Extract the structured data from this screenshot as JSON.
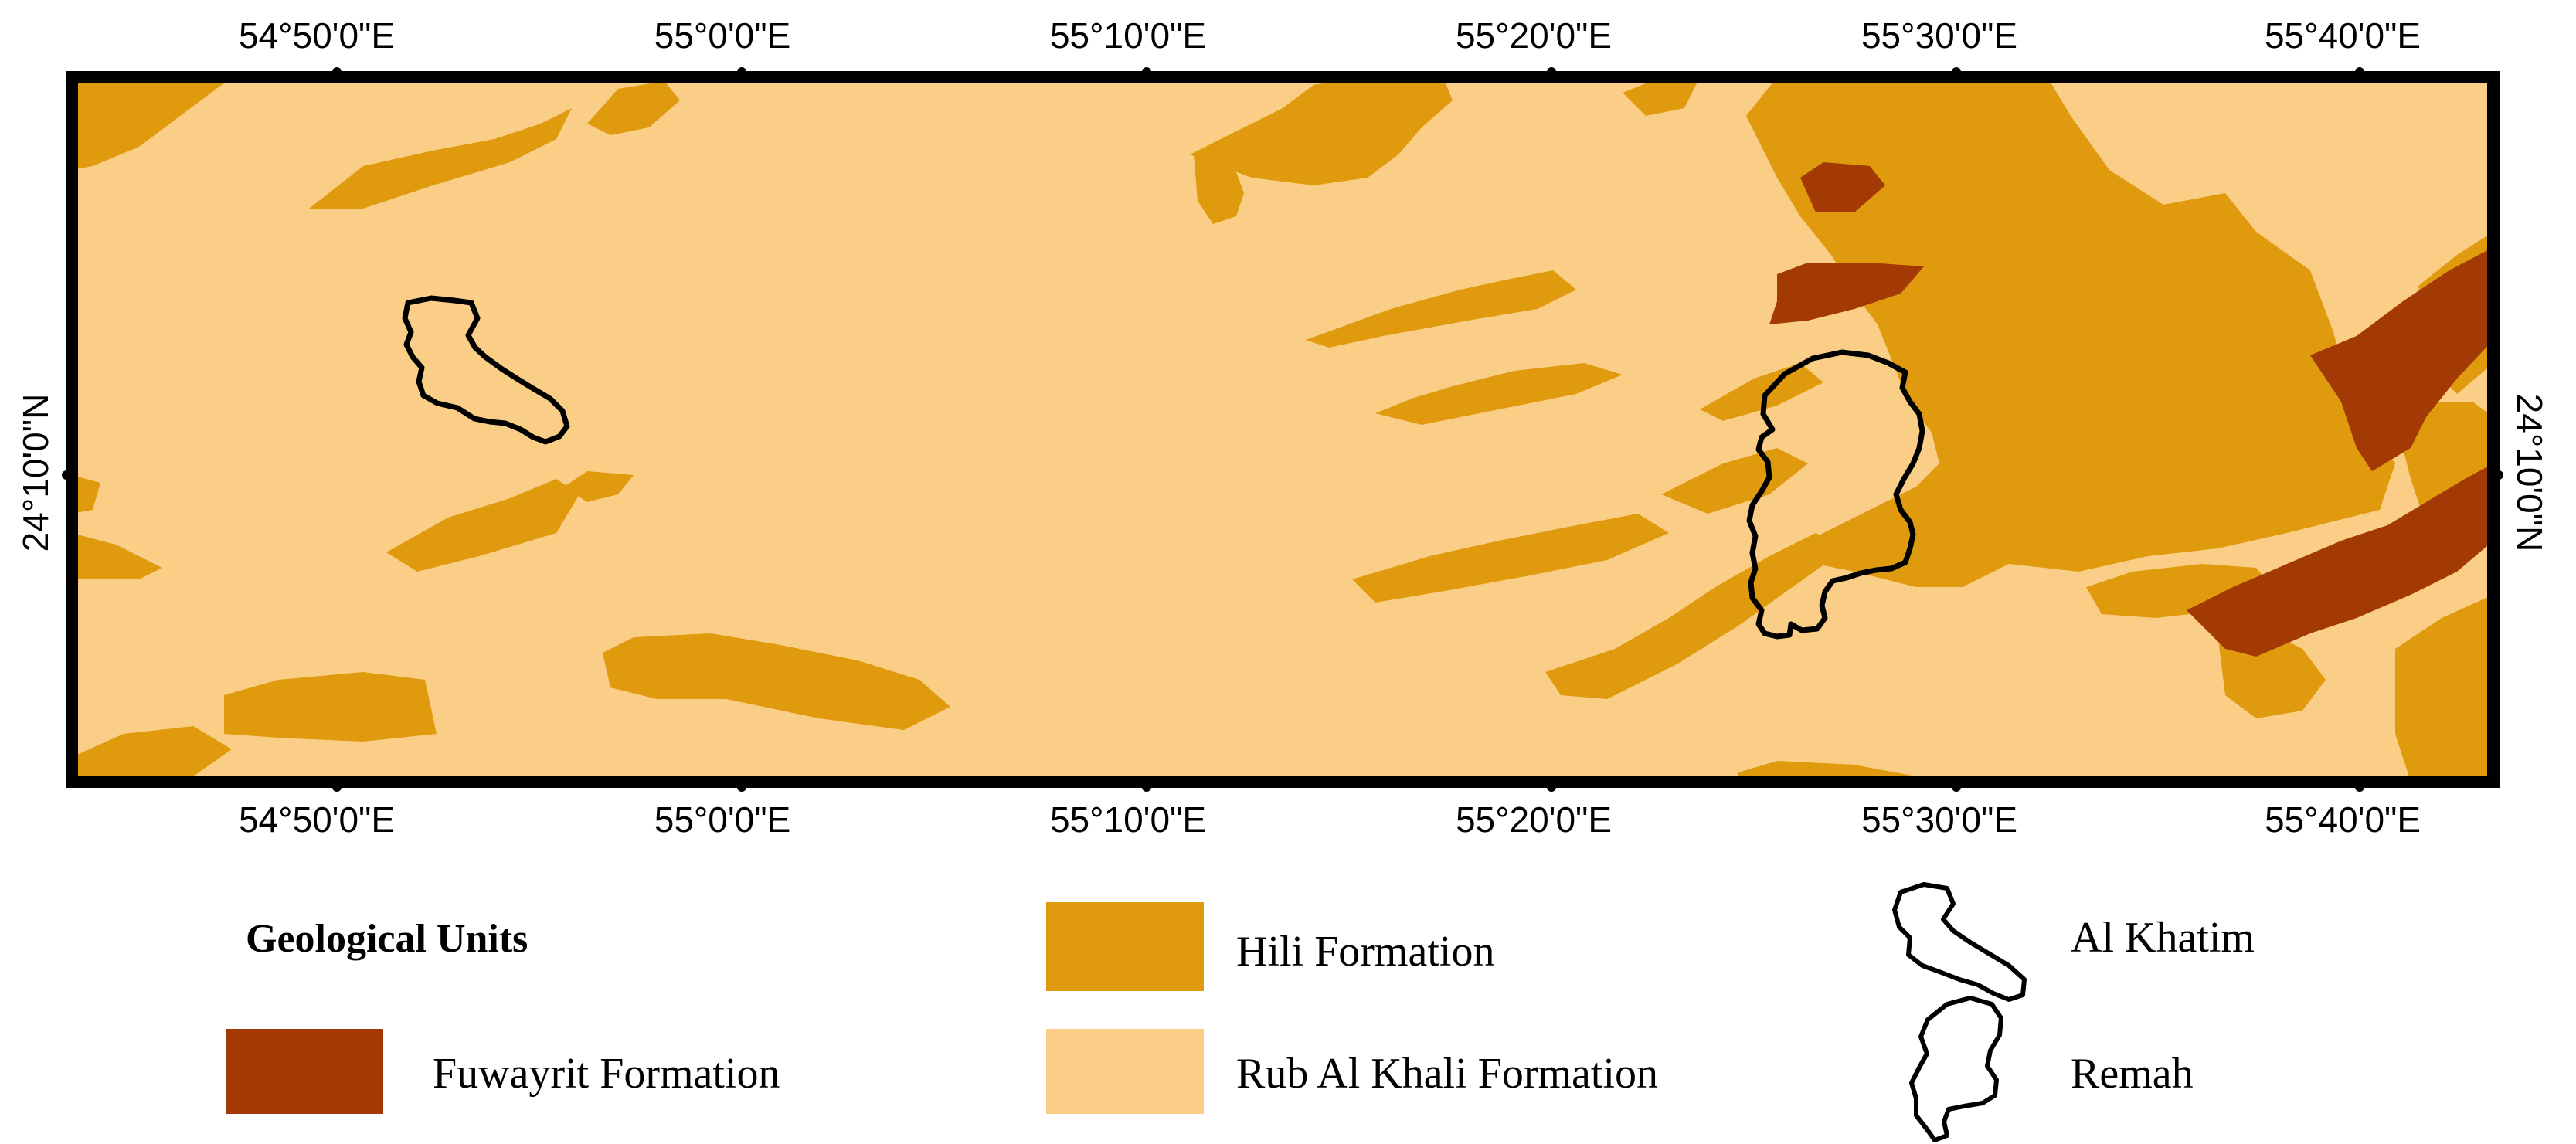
{
  "map": {
    "colors": {
      "rub_al_khali": "#FACE86",
      "hili": "#E09A0E",
      "fuwayrit": "#A33A05",
      "frame": "#000000",
      "outline": "#000000"
    },
    "top_ticks": [
      "54°50'0\"E",
      "55°0'0\"E",
      "55°10'0\"E",
      "55°20'0\"E",
      "55°30'0\"E",
      "55°40'0\"E"
    ],
    "bottom_ticks": [
      "54°50'0\"E",
      "55°0'0\"E",
      "55°10'0\"E",
      "55°20'0\"E",
      "55°30'0\"E",
      "55°40'0\"E"
    ],
    "left_tick": "24°10'0\"N",
    "right_tick": "24°10'0\"N"
  },
  "legend": {
    "title": "Geological Units",
    "units": {
      "fuwayrit": "Fuwayrit Formation",
      "hili": "Hili Formation",
      "rub_al_khali": "Rub Al Khali Formation"
    },
    "sites": {
      "al_khatim": "Al Khatim",
      "remah": "Remah"
    }
  }
}
